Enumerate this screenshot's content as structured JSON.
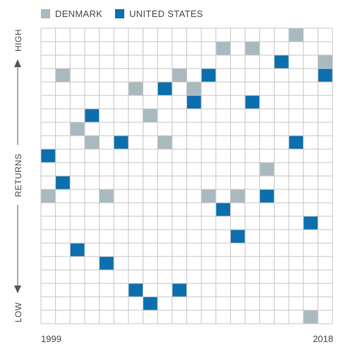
{
  "legend": {
    "denmark_label": "DENMARK",
    "us_label": "UNITED STATES"
  },
  "colors": {
    "denmark": "#a9b9c0",
    "united_states": "#0b6fae",
    "grid": "#c6c6c6",
    "axis": "#555555"
  },
  "axis": {
    "high_label": "HIGH",
    "middle_label": "RETURNS",
    "low_label": "LOW"
  },
  "chart_data": {
    "type": "heatmap",
    "description_x": "year",
    "xlabels": {
      "start": "1999",
      "end": "2018"
    },
    "x": [
      1999,
      2000,
      2001,
      2002,
      2003,
      2004,
      2005,
      2006,
      2007,
      2008,
      2009,
      2010,
      2011,
      2012,
      2013,
      2014,
      2015,
      2016,
      2017,
      2018
    ],
    "ylabel": "RETURNS",
    "y_scale": "rank, 1 = highest return",
    "num_ranks": 22,
    "series": [
      {
        "name": "DENMARK",
        "ranks": [
          13,
          4,
          8,
          9,
          13,
          9,
          5,
          7,
          9,
          4,
          5,
          13,
          2,
          13,
          2,
          11,
          3,
          1,
          22,
          3
        ]
      },
      {
        "name": "UNITED STATES",
        "ranks": [
          10,
          12,
          17,
          7,
          18,
          9,
          20,
          21,
          5,
          20,
          6,
          4,
          14,
          16,
          6,
          13,
          3,
          9,
          15,
          4
        ]
      }
    ]
  }
}
